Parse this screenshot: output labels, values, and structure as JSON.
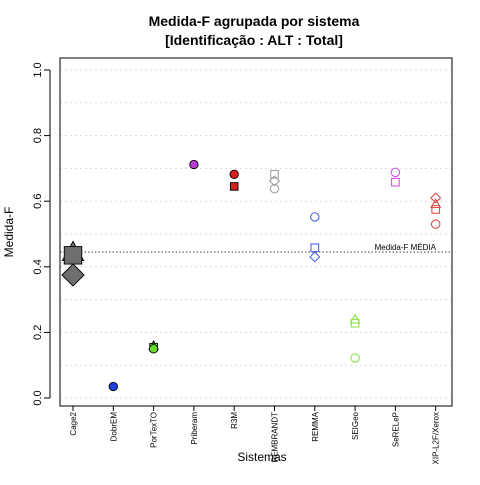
{
  "chart_data": {
    "type": "scatter",
    "title": "Medida-F agrupada por sistema",
    "subtitle": "[Identificação : ALT : Total]",
    "xlabel": "Sistemas",
    "ylabel": "Medida-F",
    "ylim": [
      0,
      1
    ],
    "yticks": [
      "0.0",
      "0.2",
      "0.4",
      "0.6",
      "0.8",
      "1.0"
    ],
    "grid": true,
    "categories": [
      "Cage2",
      "DobrEM",
      "PorTexTO",
      "Priberam",
      "R3M",
      "REMBRANDT",
      "REMMA",
      "SEIGeo",
      "SeRELeP",
      "XIP-L2F/Xerox"
    ],
    "reference_line": {
      "label": "Medida-F MÉDIA",
      "value": 0.445
    },
    "points": [
      {
        "category": "Cage2",
        "shape": "triangle",
        "filled": true,
        "size": "large",
        "color": "#6e6e6e",
        "value": 0.445
      },
      {
        "category": "Cage2",
        "shape": "square",
        "filled": true,
        "size": "large",
        "color": "#6e6e6e",
        "value": 0.435
      },
      {
        "category": "Cage2",
        "shape": "diamond",
        "filled": true,
        "size": "large",
        "color": "#6e6e6e",
        "value": 0.375
      },
      {
        "category": "DobrEM",
        "shape": "circle",
        "filled": true,
        "size": "normal",
        "color": "#1f3fe0",
        "value": 0.035
      },
      {
        "category": "PorTexTO",
        "shape": "triangle",
        "filled": true,
        "size": "normal",
        "color": "#66e01f",
        "value": 0.16
      },
      {
        "category": "PorTexTO",
        "shape": "square",
        "filled": true,
        "size": "normal",
        "color": "#66e01f",
        "value": 0.155
      },
      {
        "category": "PorTexTO",
        "shape": "circle",
        "filled": true,
        "size": "normal",
        "color": "#66e01f",
        "value": 0.15
      },
      {
        "category": "Priberam",
        "shape": "circle",
        "filled": true,
        "size": "normal",
        "color": "#b83ad0",
        "value": 0.712
      },
      {
        "category": "R3M",
        "shape": "circle",
        "filled": true,
        "size": "normal",
        "color": "#d62020",
        "value": 0.682
      },
      {
        "category": "R3M",
        "shape": "square",
        "filled": true,
        "size": "normal",
        "color": "#d62020",
        "value": 0.645
      },
      {
        "category": "REMBRANDT",
        "shape": "square",
        "filled": false,
        "size": "normal",
        "color": "#a0a0a0",
        "value": 0.682
      },
      {
        "category": "REMBRANDT",
        "shape": "diamond",
        "filled": false,
        "size": "normal",
        "color": "#a0a0a0",
        "value": 0.662
      },
      {
        "category": "REMBRANDT",
        "shape": "circle",
        "filled": false,
        "size": "normal",
        "color": "#a0a0a0",
        "value": 0.638
      },
      {
        "category": "REMMA",
        "shape": "circle",
        "filled": false,
        "size": "normal",
        "color": "#4a63e8",
        "value": 0.552
      },
      {
        "category": "REMMA",
        "shape": "square",
        "filled": false,
        "size": "normal",
        "color": "#4a63e8",
        "value": 0.458
      },
      {
        "category": "REMMA",
        "shape": "diamond",
        "filled": false,
        "size": "normal",
        "color": "#4a63e8",
        "value": 0.43
      },
      {
        "category": "SEIGeo",
        "shape": "triangle",
        "filled": false,
        "size": "normal",
        "color": "#8ee04a",
        "value": 0.24
      },
      {
        "category": "SEIGeo",
        "shape": "square",
        "filled": false,
        "size": "normal",
        "color": "#8ee04a",
        "value": 0.228
      },
      {
        "category": "SEIGeo",
        "shape": "circle",
        "filled": false,
        "size": "normal",
        "color": "#8ee04a",
        "value": 0.122
      },
      {
        "category": "SeRELeP",
        "shape": "circle",
        "filled": false,
        "size": "normal",
        "color": "#d455e0",
        "value": 0.688
      },
      {
        "category": "SeRELeP",
        "shape": "square",
        "filled": false,
        "size": "normal",
        "color": "#d455e0",
        "value": 0.658
      },
      {
        "category": "XIP-L2F/Xerox",
        "shape": "diamond",
        "filled": false,
        "size": "normal",
        "color": "#e04848",
        "value": 0.61
      },
      {
        "category": "XIP-L2F/Xerox",
        "shape": "triangle",
        "filled": false,
        "size": "normal",
        "color": "#e04848",
        "value": 0.592
      },
      {
        "category": "XIP-L2F/Xerox",
        "shape": "square",
        "filled": false,
        "size": "normal",
        "color": "#e04848",
        "value": 0.575
      },
      {
        "category": "XIP-L2F/Xerox",
        "shape": "circle",
        "filled": false,
        "size": "normal",
        "color": "#e04848",
        "value": 0.53
      }
    ]
  }
}
